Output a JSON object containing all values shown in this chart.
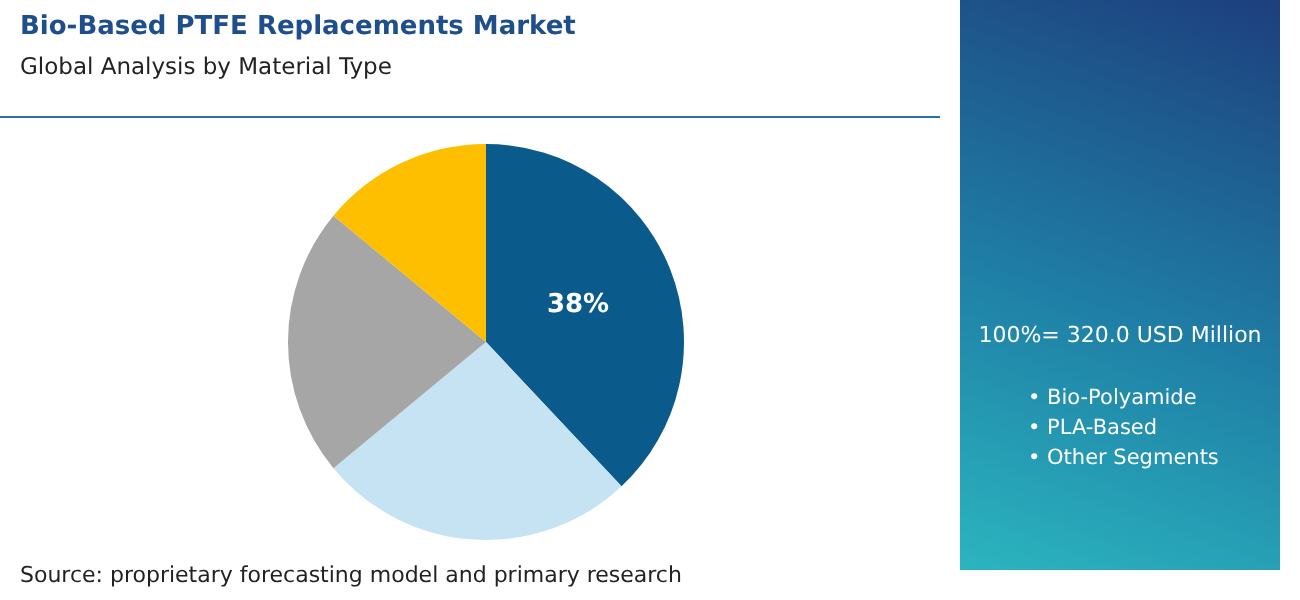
{
  "chart_data": {
    "type": "pie",
    "title": "Bio-Based PTFE Replacements Market",
    "subtitle": "Global Analysis by Material Type",
    "categories": [
      null,
      null,
      null,
      null
    ],
    "values": [
      38,
      26,
      22,
      14
    ],
    "colors": [
      "#0b5a8c",
      "#c6e3f4",
      "#a6a6a6",
      "#fdbf00"
    ],
    "value_labels": [
      "38%",
      null,
      null,
      null
    ],
    "annotations": [
      "100%= 320.0 USD Million",
      "• Bio-Polyamide",
      "• PLA-Based",
      "• Other Segments",
      "Source: proprietary forecasting model and primary research"
    ]
  }
}
